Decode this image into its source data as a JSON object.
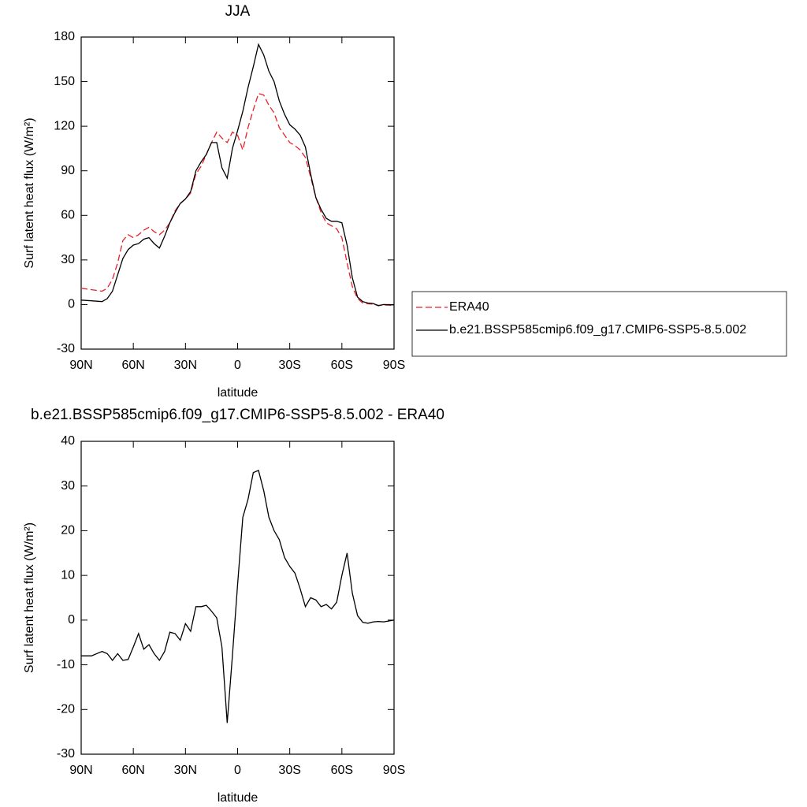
{
  "chart_data": [
    {
      "type": "line",
      "title": "JJA",
      "xlabel": "latitude",
      "ylabel": "Surf latent heat flux (W/m²)",
      "xlim": [
        90,
        -90
      ],
      "ylim": [
        -30,
        180
      ],
      "xticks": [
        {
          "value": 90,
          "label": "90N"
        },
        {
          "value": 60,
          "label": "60N"
        },
        {
          "value": 30,
          "label": "30N"
        },
        0,
        {
          "value": -30,
          "label": "30S"
        },
        {
          "value": -60,
          "label": "60S"
        },
        {
          "value": -90,
          "label": "90S"
        }
      ],
      "yticks": [
        -30,
        0,
        30,
        60,
        90,
        120,
        150,
        180
      ],
      "legend": "right",
      "x": [
        90,
        84,
        78,
        75,
        72,
        69,
        66,
        63,
        60,
        57,
        54,
        51,
        48,
        45,
        42,
        39,
        36,
        33,
        30,
        27,
        24,
        21,
        18,
        15,
        12,
        9,
        6,
        3,
        0,
        -3,
        -6,
        -9,
        -12,
        -15,
        -18,
        -21,
        -24,
        -27,
        -30,
        -33,
        -36,
        -39,
        -42,
        -45,
        -48,
        -51,
        -54,
        -57,
        -60,
        -63,
        -66,
        -69,
        -72,
        -75,
        -78,
        -81,
        -84,
        -90
      ],
      "series": [
        {
          "name": "ERA40",
          "color": "#e8202a",
          "linestyle": "dashed",
          "values": [
            11,
            10,
            9,
            11,
            17,
            28,
            43,
            47,
            45,
            47,
            50,
            52,
            49,
            47,
            50,
            55,
            63,
            68,
            71,
            75,
            88,
            93,
            101,
            109,
            116,
            112,
            109,
            116,
            114,
            104,
            119,
            131,
            142,
            141,
            134,
            129,
            119,
            114,
            109,
            107,
            104,
            99,
            86,
            72,
            62,
            55,
            53,
            51,
            45,
            28,
            12,
            4,
            1,
            0.5,
            0.3,
            -0.5,
            -0.3,
            -0.5
          ]
        },
        {
          "name": "b.e21.BSSP585cmip6.f09_g17.CMIP6-SSP5-8.5.002",
          "color": "#000000",
          "linestyle": "solid",
          "values": [
            3,
            2.5,
            2,
            4,
            9,
            20,
            31,
            37,
            40,
            41,
            44,
            45,
            41,
            38,
            46,
            55,
            62,
            68,
            71,
            76,
            90,
            96,
            101,
            109,
            109,
            92,
            85,
            105,
            117,
            130,
            146,
            160,
            175,
            168,
            157,
            150,
            137,
            128,
            121,
            118,
            114,
            106,
            88,
            72,
            64,
            58,
            56,
            56,
            55,
            40,
            18,
            5,
            2,
            1,
            0.7,
            -0.8,
            0,
            -0.2
          ]
        }
      ]
    },
    {
      "type": "line",
      "title": "b.e21.BSSP585cmip6.f09_g17.CMIP6-SSP5-8.5.002 - ERA40",
      "xlabel": "latitude",
      "ylabel": "Surf latent heat flux (W/m²)",
      "xlim": [
        90,
        -90
      ],
      "ylim": [
        -30,
        40
      ],
      "xticks": [
        {
          "value": 90,
          "label": "90N"
        },
        {
          "value": 60,
          "label": "60N"
        },
        {
          "value": 30,
          "label": "30N"
        },
        0,
        {
          "value": -30,
          "label": "30S"
        },
        {
          "value": -60,
          "label": "60S"
        },
        {
          "value": -90,
          "label": "90S"
        }
      ],
      "yticks": [
        -30,
        -20,
        -10,
        0,
        10,
        20,
        30,
        40
      ],
      "x": [
        90,
        84,
        78,
        75,
        72,
        69,
        66,
        63,
        60,
        57,
        54,
        51,
        48,
        45,
        42,
        39,
        36,
        33,
        30,
        27,
        24,
        21,
        18,
        15,
        12,
        9,
        6,
        3,
        0,
        -3,
        -6,
        -9,
        -12,
        -15,
        -18,
        -21,
        -24,
        -27,
        -30,
        -33,
        -36,
        -39,
        -42,
        -45,
        -48,
        -51,
        -54,
        -57,
        -60,
        -63,
        -66,
        -69,
        -72,
        -75,
        -78,
        -81,
        -84,
        -90
      ],
      "color": "#000000",
      "linestyle": "solid",
      "values": [
        -8,
        -8,
        -7,
        -7.5,
        -9,
        -7.5,
        -9,
        -8.8,
        -6,
        -3,
        -6.5,
        -5.5,
        -7.5,
        -9,
        -7,
        -2.7,
        -3,
        -4.5,
        -0.8,
        -2.5,
        3,
        3,
        3.3,
        2,
        0.5,
        -6,
        -23,
        -8,
        8,
        23,
        27,
        33,
        33.5,
        29,
        23,
        20,
        18,
        14,
        12,
        10.5,
        7,
        3,
        5,
        4.5,
        3,
        3.5,
        2.5,
        4,
        10,
        15,
        6,
        1,
        -0.5,
        -0.7,
        -0.4,
        -0.3,
        -0.4,
        0
      ]
    }
  ]
}
